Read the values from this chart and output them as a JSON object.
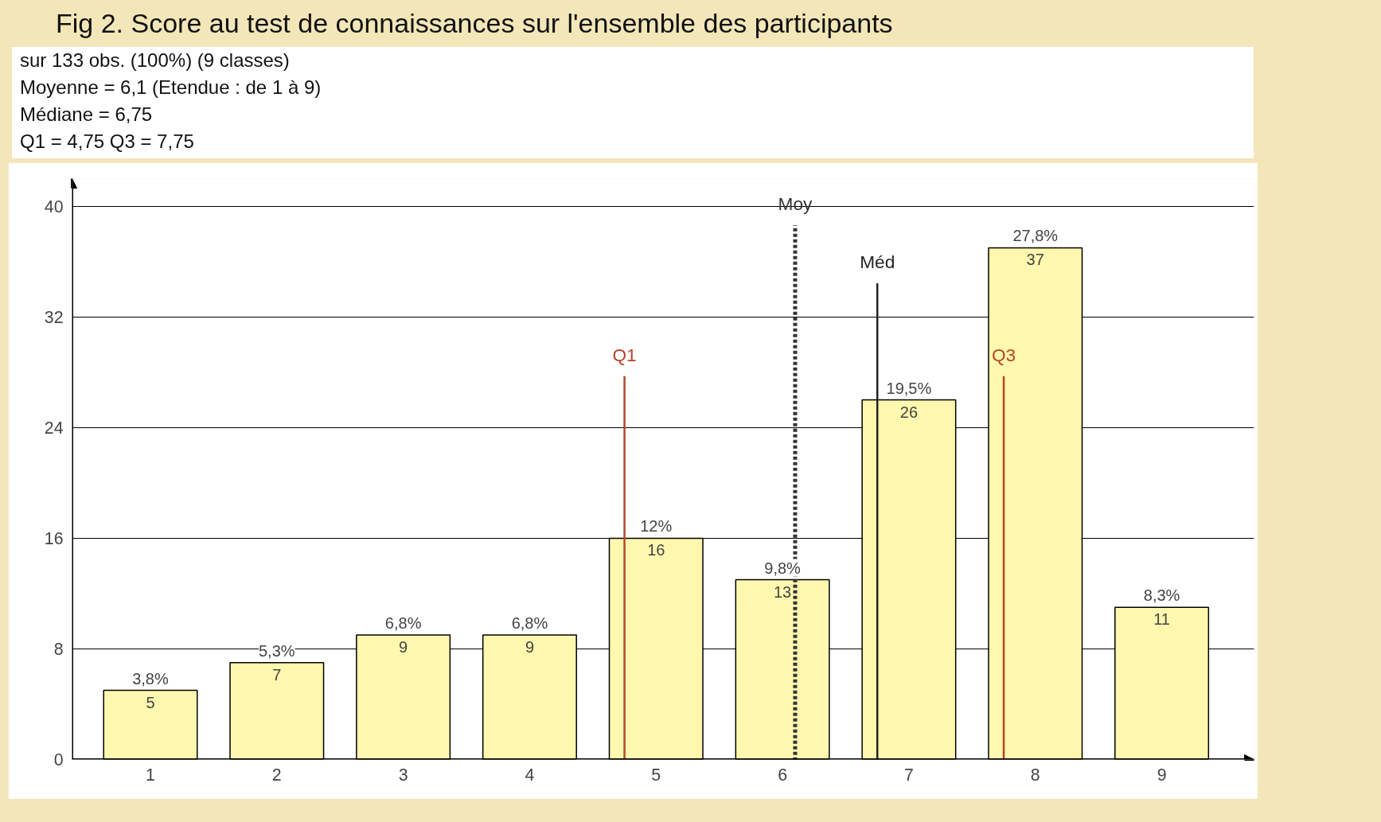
{
  "chart_data": {
    "type": "bar",
    "title": "Fig 2. Score au test de connaissances sur l'ensemble des participants",
    "annotations": [
      "sur 133 obs. (100%) (9 classes)",
      "Moyenne = 6,1 (Etendue : de 1 à 9)",
      "Médiane = 6,75",
      "Q1 = 4,75  Q3 = 7,75",
      {
        "text": "3,8%",
        "x": 1,
        "y": 5
      },
      {
        "text": "5,3%",
        "x": 2,
        "y": 7
      },
      {
        "text": "6,8%",
        "x": 3,
        "y": 9
      },
      {
        "text": "6,8%",
        "x": 4,
        "y": 9
      },
      {
        "text": "12%",
        "x": 5,
        "y": 16
      },
      {
        "text": "9,8%",
        "x": 6,
        "y": 13
      },
      {
        "text": "19,5%",
        "x": 7,
        "y": 26
      },
      {
        "text": "27,8%",
        "x": 8,
        "y": 37
      },
      {
        "text": "8,3%",
        "x": 9,
        "y": 11
      }
    ],
    "x": [
      1,
      2,
      3,
      4,
      5,
      6,
      7,
      8,
      9
    ],
    "values": [
      5,
      7,
      9,
      9,
      16,
      13,
      26,
      37,
      11
    ],
    "data_labels": true,
    "color": "#fff8ae",
    "xlim": [
      0.38,
      9.73
    ],
    "xticks": [
      1,
      2,
      3,
      4,
      5,
      6,
      7,
      8,
      9
    ],
    "ylim": [
      0,
      42
    ],
    "yticks": [
      0,
      8,
      16,
      24,
      32,
      40
    ],
    "grid": "y",
    "ref_lines": [
      {
        "axis": "x",
        "value": 4.75,
        "label": "Q1",
        "color": "#b5442a",
        "line_style": "solid"
      },
      {
        "axis": "x",
        "value": 6.1,
        "label": "Moy",
        "color": "#333333",
        "line_style": "dashed"
      },
      {
        "axis": "x",
        "value": 6.75,
        "label": "Méd",
        "color": "#222222",
        "line_style": "solid"
      },
      {
        "axis": "x",
        "value": 7.75,
        "label": "Q3",
        "color": "#b5442a",
        "line_style": "solid"
      }
    ]
  }
}
